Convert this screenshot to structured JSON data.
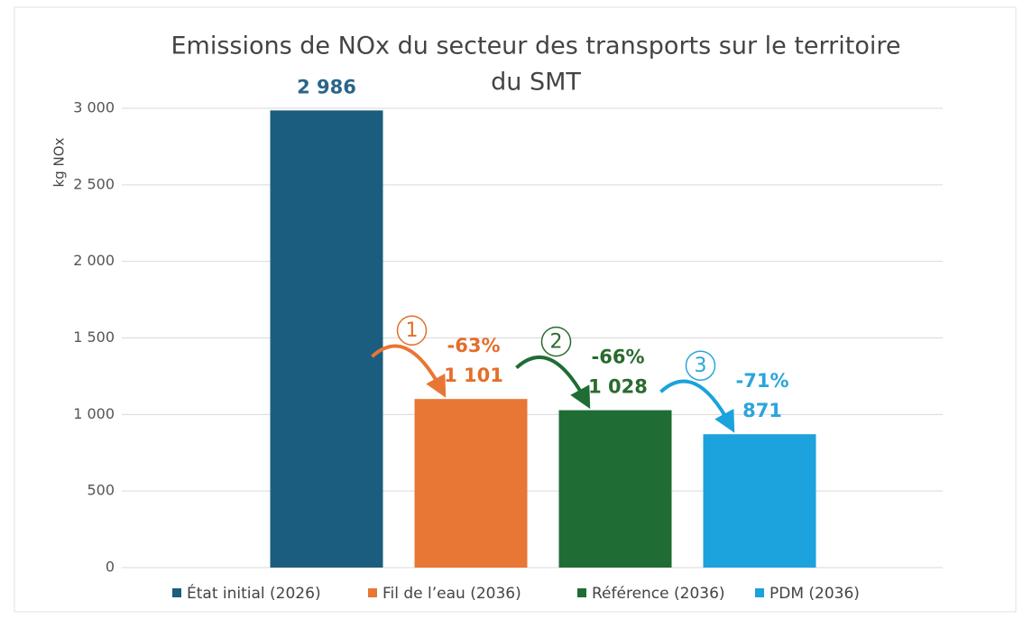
{
  "chart_data": {
    "type": "bar",
    "title": [
      "Emissions de NOx du secteur des transports sur le territoire",
      "du SMT"
    ],
    "y_label": "kg NOx",
    "ylim": [
      0,
      3000
    ],
    "yticks": [
      0,
      500,
      {
        "value": 1000,
        "label": "1 000"
      },
      {
        "value": 1500,
        "label": "1 500"
      },
      {
        "value": 2000,
        "label": "2 000"
      },
      {
        "value": 2500,
        "label": "2 500"
      },
      {
        "value": 3000,
        "label": "3 000"
      }
    ],
    "grid": true,
    "legend": "bottom",
    "series": [
      {
        "name": "État initial (2026)",
        "color": "#1b5d7f",
        "label_color": "#2a6688",
        "values": [
          2986
        ],
        "value_labels": [
          "2 986"
        ]
      },
      {
        "name": "Fil de l’eau (2036)",
        "color": "#e87634",
        "label_color": "#e36e2c",
        "values": [
          1101
        ],
        "value_labels": [
          "1 101"
        ]
      },
      {
        "name": "Référence (2036)",
        "color": "#1f6d34",
        "label_color": "#2a6a2e",
        "values": [
          1028
        ],
        "value_labels": [
          "1 028"
        ]
      },
      {
        "name": "PDM (2036)",
        "color": "#1ca2dc",
        "label_color": "#2aa5dc",
        "values": [
          871
        ],
        "value_labels": [
          "871"
        ]
      }
    ],
    "annotations": [
      {
        "step": 1,
        "change": "-63%"
      },
      {
        "step": 2,
        "change": "-66%"
      },
      {
        "step": 3,
        "change": "-71%"
      }
    ]
  }
}
